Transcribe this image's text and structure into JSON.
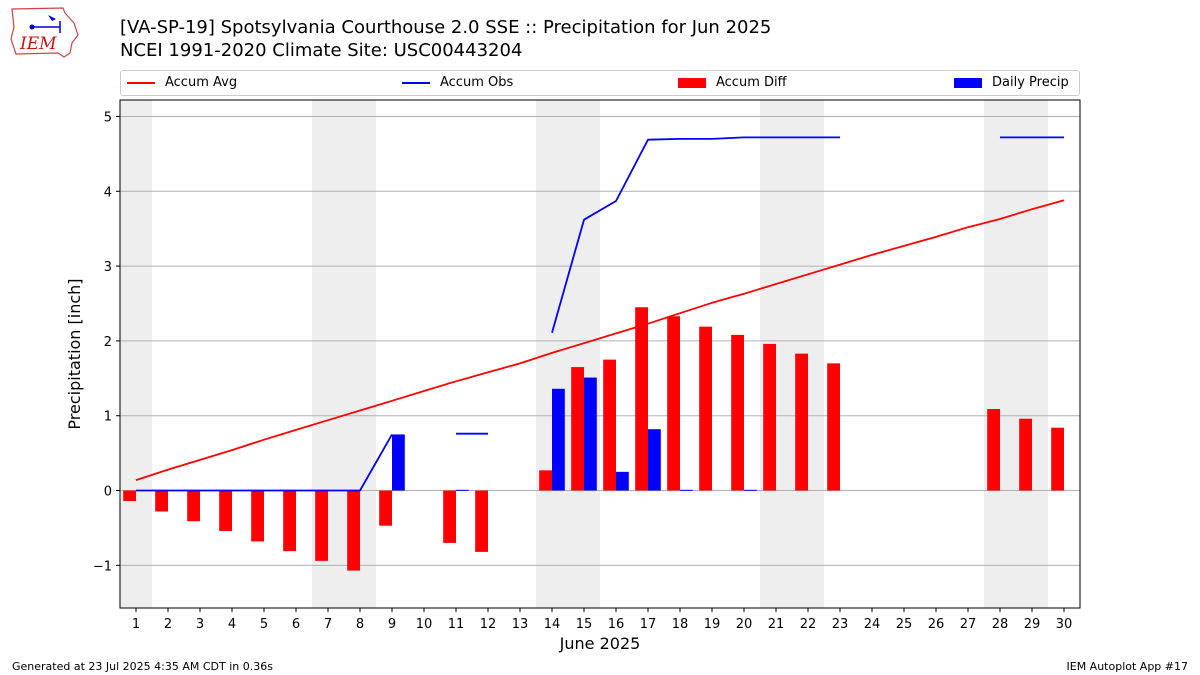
{
  "header": {
    "title_line1": "[VA-SP-19] Spotsylvania Courthouse 2.0 SSE :: Precipitation for Jun 2025",
    "title_line2": "NCEI 1991-2020 Climate Site: USC00443204",
    "logo_text": "IEM"
  },
  "legend": {
    "items": [
      {
        "label": "Accum Avg",
        "color": "#ff0000",
        "kind": "line"
      },
      {
        "label": "Accum Obs",
        "color": "#0000ff",
        "kind": "line"
      },
      {
        "label": "Accum Diff",
        "color": "#ff0000",
        "kind": "bar"
      },
      {
        "label": "Daily Precip",
        "color": "#0000ff",
        "kind": "bar"
      }
    ]
  },
  "footer": {
    "generated": "Generated at 23 Jul 2025 4:35 AM CDT in 0.36s",
    "app": "IEM Autoplot App #17"
  },
  "chart_data": {
    "type": "bar",
    "title": "[VA-SP-19] Spotsylvania Courthouse 2.0 SSE :: Precipitation for Jun 2025",
    "xlabel": "June 2025",
    "ylabel": "Precipitation [inch]",
    "ylim": [
      -1.57,
      5.22
    ],
    "xlim": [
      0.5,
      30.5
    ],
    "y_ticks": [
      -1,
      0,
      1,
      2,
      3,
      4,
      5
    ],
    "y_tick_labels": [
      "−1",
      "0",
      "1",
      "2",
      "3",
      "4",
      "5"
    ],
    "x": [
      1,
      2,
      3,
      4,
      5,
      6,
      7,
      8,
      9,
      10,
      11,
      12,
      13,
      14,
      15,
      16,
      17,
      18,
      19,
      20,
      21,
      22,
      23,
      24,
      25,
      26,
      27,
      28,
      29,
      30
    ],
    "x_tick_labels": [
      "1",
      "2",
      "3",
      "4",
      "5",
      "6",
      "7",
      "8",
      "9",
      "10",
      "11",
      "12",
      "13",
      "14",
      "15",
      "16",
      "17",
      "18",
      "19",
      "20",
      "21",
      "22",
      "23",
      "24",
      "25",
      "26",
      "27",
      "28",
      "29",
      "30"
    ],
    "weekend_days": [
      1,
      7,
      8,
      14,
      15,
      21,
      22,
      28,
      29
    ],
    "grid": "horizontal",
    "legend_position": "top",
    "series": [
      {
        "name": "Accum Avg",
        "type": "line",
        "color": "#ff0000",
        "values": [
          0.14,
          0.28,
          0.41,
          0.54,
          0.68,
          0.81,
          0.94,
          1.07,
          1.2,
          1.33,
          1.46,
          1.58,
          1.7,
          1.84,
          1.97,
          2.1,
          2.23,
          2.37,
          2.51,
          2.63,
          2.76,
          2.89,
          3.02,
          3.15,
          3.27,
          3.39,
          3.52,
          3.63,
          3.76,
          3.88
        ]
      },
      {
        "name": "Accum Obs",
        "type": "line",
        "color": "#0000ff",
        "values": [
          0.0,
          0.0,
          0.0,
          0.0,
          0.0,
          0.0,
          0.0,
          0.0,
          0.75,
          null,
          0.76,
          0.76,
          null,
          2.11,
          3.62,
          3.87,
          4.69,
          4.7,
          4.7,
          4.72,
          4.72,
          4.72,
          4.72,
          null,
          null,
          null,
          null,
          4.72,
          4.72,
          4.72
        ]
      },
      {
        "name": "Accum Diff",
        "type": "bar",
        "color": "#ff0000",
        "values": [
          -0.14,
          -0.28,
          -0.41,
          -0.54,
          -0.68,
          -0.81,
          -0.94,
          -1.07,
          -0.47,
          null,
          -0.7,
          -0.82,
          null,
          0.27,
          1.65,
          1.75,
          2.45,
          2.33,
          2.19,
          2.08,
          1.96,
          1.83,
          1.7,
          null,
          null,
          null,
          null,
          1.09,
          0.96,
          0.84
        ]
      },
      {
        "name": "Daily Precip",
        "type": "bar",
        "color": "#0000ff",
        "values": [
          0.0,
          0.0,
          0.0,
          0.0,
          0.0,
          0.0,
          0.0,
          0.0,
          0.75,
          null,
          0.01,
          0.0,
          null,
          1.36,
          1.51,
          0.25,
          0.82,
          0.01,
          0.0,
          0.01,
          0.0,
          0.0,
          0.0,
          null,
          null,
          null,
          null,
          0.0,
          0.0,
          0.0
        ]
      }
    ]
  }
}
